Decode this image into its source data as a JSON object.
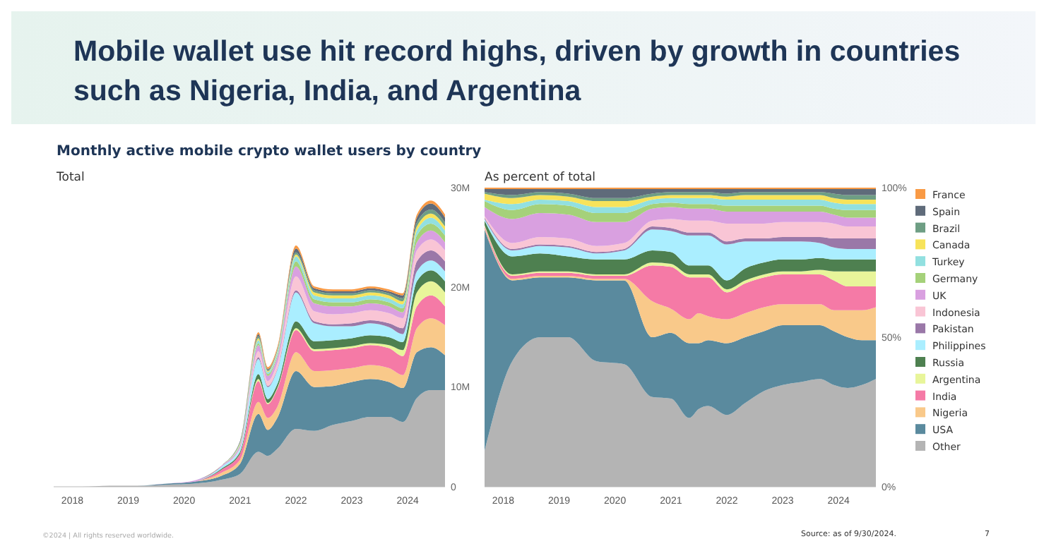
{
  "chart_data": [
    {
      "type": "area",
      "stacked": true,
      "title": "Mobile wallet use hit record highs, driven by growth in countries such as Nigeria, India, and Argentina",
      "subtitle": "Monthly active mobile crypto wallet users by country",
      "annotations": [
        "Total",
        "©2024 | All rights reserved worldwide."
      ],
      "x": [
        "2017-09",
        "2018-03",
        "2018-09",
        "2019-03",
        "2019-09",
        "2020-03",
        "2020-09",
        "2021-01",
        "2021-05",
        "2021-07",
        "2021-09",
        "2022-01",
        "2022-05",
        "2022-09",
        "2023-01",
        "2023-05",
        "2023-09",
        "2023-12",
        "2024-03",
        "2024-06",
        "2024-09"
      ],
      "xlim": [
        "2017-09",
        "2024-09"
      ],
      "xticks": [
        {
          "value": "2018",
          "label": "2018"
        },
        {
          "value": "2019",
          "label": "2019"
        },
        {
          "value": "2020",
          "label": "2020"
        },
        {
          "value": "2021",
          "label": "2021"
        },
        {
          "value": "2022",
          "label": "2022"
        },
        {
          "value": "2023",
          "label": "2023"
        },
        {
          "value": "2024",
          "label": "2024"
        }
      ],
      "ylim": [
        0,
        30
      ],
      "yticks": [
        0,
        {
          "value": 10,
          "label": "10M"
        },
        {
          "value": 20,
          "label": "20M"
        },
        {
          "value": 30,
          "label": "30M"
        }
      ],
      "series": [
        {
          "color": "#b4b4b4",
          "values": [
            0,
            0,
            0.1,
            0.1,
            0.2,
            0.3,
            0.7,
            1.3,
            3.5,
            3.1,
            3.8,
            5.8,
            5.6,
            6.2,
            6.6,
            7,
            7,
            6.5,
            8.9,
            9.7,
            9.7
          ]
        },
        {
          "color": "#5a8a9e",
          "values": [
            0,
            0,
            0,
            0,
            0.1,
            0.2,
            0.4,
            1,
            3.8,
            2.6,
            3.1,
            5.8,
            4.4,
            3.9,
            3.9,
            3.8,
            3.5,
            3.4,
            4.6,
            4.3,
            3.5
          ]
        },
        {
          "color": "#f9c98a",
          "values": [
            0,
            0,
            0,
            0,
            0,
            0,
            0.3,
            0.4,
            1.2,
            1.2,
            1.1,
            1.9,
            1.6,
            1.6,
            1.4,
            1.4,
            1.4,
            1.3,
            2.4,
            2.9,
            3
          ]
        },
        {
          "color": "#f57aa6",
          "values": [
            0,
            0,
            0,
            0,
            0,
            0,
            0.3,
            0.6,
            2.1,
            1.4,
            1.8,
            2.2,
            2,
            2,
            2,
            2,
            2,
            1.9,
            2.2,
            2.3,
            1.9
          ]
        },
        {
          "color": "#e8f59a",
          "values": [
            0,
            0,
            0,
            0,
            0,
            0,
            0,
            0,
            0.2,
            0.1,
            0.1,
            0.2,
            0.2,
            0.2,
            0.2,
            0.2,
            0.3,
            0.6,
            1.4,
            1.4,
            1.4
          ]
        },
        {
          "color": "#4e8050",
          "values": [
            0,
            0,
            0,
            0,
            0,
            0,
            0.1,
            0.2,
            0.5,
            0.4,
            0.4,
            0.7,
            0.8,
            0.8,
            0.8,
            0.8,
            0.8,
            0.8,
            1.1,
            1.1,
            1.1
          ]
        },
        {
          "color": "#aaeeff",
          "values": [
            0,
            0,
            0,
            0,
            0,
            0,
            0.2,
            0.3,
            1.5,
            1.2,
            1.4,
            2.9,
            1.8,
            1.4,
            1.2,
            1.2,
            1,
            0.8,
            1,
            1,
            1
          ]
        },
        {
          "color": "#9a78a8",
          "values": [
            0,
            0,
            0,
            0,
            0,
            0,
            0,
            0,
            0.2,
            0.1,
            0.1,
            0.2,
            0.2,
            0.2,
            0.3,
            0.3,
            0.4,
            0.6,
            1,
            1,
            1
          ]
        },
        {
          "color": "#f9c5d5",
          "values": [
            0,
            0,
            0,
            0,
            0,
            0,
            0,
            0.1,
            0.6,
            0.5,
            0.6,
            1.4,
            1,
            1,
            1,
            1,
            1,
            1,
            1.1,
            1.1,
            1.1
          ]
        },
        {
          "color": "#d9a0e0",
          "values": [
            0,
            0,
            0,
            0,
            0,
            0.1,
            0.1,
            0.2,
            0.6,
            0.5,
            0.6,
            1,
            0.8,
            0.8,
            0.7,
            0.7,
            0.7,
            0.6,
            0.8,
            0.9,
            0.8
          ]
        },
        {
          "color": "#a5d17a",
          "values": [
            0,
            0,
            0,
            0,
            0,
            0,
            0,
            0.1,
            0.2,
            0.2,
            0.2,
            0.5,
            0.4,
            0.4,
            0.4,
            0.4,
            0.4,
            0.4,
            0.7,
            0.7,
            0.7
          ]
        },
        {
          "color": "#92e0e0",
          "values": [
            0,
            0,
            0,
            0,
            0,
            0,
            0,
            0.1,
            0.3,
            0.2,
            0.3,
            0.5,
            0.4,
            0.4,
            0.4,
            0.4,
            0.4,
            0.4,
            0.5,
            0.6,
            0.5
          ]
        },
        {
          "color": "#f7e35a",
          "values": [
            0,
            0,
            0,
            0,
            0,
            0,
            0,
            0.1,
            0.2,
            0.1,
            0.1,
            0.2,
            0.3,
            0.3,
            0.3,
            0.3,
            0.3,
            0.3,
            0.4,
            0.4,
            0.4
          ]
        },
        {
          "color": "#6e9e84",
          "values": [
            0,
            0,
            0,
            0,
            0,
            0,
            0,
            0.1,
            0.2,
            0.1,
            0.1,
            0.2,
            0.2,
            0.2,
            0.2,
            0.2,
            0.2,
            0.3,
            0.4,
            0.4,
            0.4
          ]
        },
        {
          "color": "#5f6b7a",
          "values": [
            0,
            0,
            0,
            0,
            0,
            0,
            0,
            0.1,
            0.2,
            0.1,
            0.1,
            0.4,
            0.2,
            0.2,
            0.2,
            0.2,
            0.2,
            0.3,
            0.5,
            0.6,
            0.5
          ]
        },
        {
          "color": "#f99a45",
          "values": [
            0,
            0,
            0,
            0,
            0,
            0,
            0,
            0,
            0.2,
            0.2,
            0.2,
            0.3,
            0.2,
            0.2,
            0.2,
            0.2,
            0.2,
            0.2,
            0.3,
            0.3,
            0.3
          ]
        }
      ]
    },
    {
      "type": "area",
      "stacked": true,
      "title": "As percent of total",
      "annotations": [
        "Source: as of 9/30/2024.",
        "7"
      ],
      "legend": "right",
      "x": [
        "2017-09",
        "2018-03",
        "2018-09",
        "2019-03",
        "2019-09",
        "2020-03",
        "2020-09",
        "2021-01",
        "2021-05",
        "2021-07",
        "2021-09",
        "2022-01",
        "2022-05",
        "2022-09",
        "2023-01",
        "2023-05",
        "2023-09",
        "2023-12",
        "2024-03",
        "2024-06",
        "2024-09"
      ],
      "xlim": [
        "2017-09",
        "2024-09"
      ],
      "xticks": [
        {
          "value": "2018",
          "label": "2018"
        },
        {
          "value": "2019",
          "label": "2019"
        },
        {
          "value": "2020",
          "label": "2020"
        },
        {
          "value": "2021",
          "label": "2021"
        },
        {
          "value": "2022",
          "label": "2022"
        },
        {
          "value": "2023",
          "label": "2023"
        },
        {
          "value": "2024",
          "label": "2024"
        }
      ],
      "ylim": [
        0,
        100
      ],
      "yticks": [
        {
          "value": 0,
          "label": "0%"
        },
        {
          "value": 50,
          "label": "50%"
        },
        {
          "value": 100,
          "label": "100%"
        }
      ],
      "series": [
        {
          "name": "Other",
          "color": "#b4b4b4",
          "values": [
            12,
            42,
            50,
            50,
            42,
            41,
            30,
            29.5,
            23,
            26,
            27,
            24,
            28,
            32,
            34,
            35,
            36,
            34,
            33,
            34,
            36
          ]
        },
        {
          "name": "USA",
          "color": "#5a8a9e",
          "values": [
            74,
            27,
            20,
            20,
            27,
            28,
            20,
            22,
            25,
            22,
            22,
            24,
            22,
            20,
            20,
            19,
            18,
            18,
            17,
            15,
            13
          ]
        },
        {
          "name": "Nigeria",
          "color": "#f9c98a",
          "values": [
            0.5,
            0.5,
            0.5,
            0.5,
            0.5,
            0.5,
            12,
            8,
            8,
            10,
            8,
            8,
            8,
            8,
            7,
            7,
            7,
            7,
            9,
            10,
            11
          ]
        },
        {
          "name": "India",
          "color": "#f57aa6",
          "values": [
            0.5,
            1,
            1,
            1,
            1,
            1,
            12,
            14,
            14,
            12,
            13,
            9,
            10,
            10,
            10,
            10,
            10,
            10,
            8,
            8,
            7
          ]
        },
        {
          "name": "Argentina",
          "color": "#e8f59a",
          "values": [
            0.5,
            0.5,
            0.5,
            0.5,
            0.5,
            0.5,
            1,
            1,
            1,
            1,
            1,
            1,
            1,
            1,
            1,
            1,
            1.5,
            3,
            5,
            5,
            5
          ]
        },
        {
          "name": "Russia",
          "color": "#4e8050",
          "values": [
            1.5,
            6,
            6,
            5,
            5,
            5,
            4,
            4,
            3,
            3,
            3,
            3,
            4,
            4,
            4,
            4,
            4,
            4,
            4,
            4,
            4
          ]
        },
        {
          "name": "Philippines",
          "color": "#aaeeff",
          "values": [
            0.5,
            2,
            2.5,
            3,
            2,
            3,
            7,
            7,
            10,
            10,
            10,
            12,
            9,
            7,
            6,
            6,
            5,
            4,
            3.5,
            3.5,
            3.5
          ]
        },
        {
          "name": "Pakistan",
          "color": "#9a78a8",
          "values": [
            0.5,
            0.5,
            0.5,
            0.5,
            0.5,
            0.5,
            1,
            1,
            1,
            1,
            1,
            1,
            1,
            1,
            1.5,
            1.5,
            2,
            3,
            3.5,
            3.5,
            3.5
          ]
        },
        {
          "name": "Indonesia",
          "color": "#f9c5d5",
          "values": [
            0.5,
            2,
            2.5,
            2.5,
            2,
            2,
            2,
            3,
            4,
            4,
            4,
            6,
            5,
            5,
            5,
            5,
            5,
            5,
            4,
            4,
            4
          ]
        },
        {
          "name": "UK",
          "color": "#d9a0e0",
          "values": [
            3,
            8,
            8,
            8,
            8,
            7,
            4,
            4,
            4,
            4,
            4,
            4,
            4,
            4,
            3.5,
            3.5,
            3.5,
            3,
            3,
            3,
            3
          ]
        },
        {
          "name": "Germany",
          "color": "#a5d17a",
          "values": [
            2,
            3,
            3,
            3,
            3,
            3,
            1.5,
            1.5,
            1.5,
            1.5,
            1.5,
            2,
            2,
            2,
            2,
            2,
            2,
            2,
            2.5,
            2.5,
            2.5
          ]
        },
        {
          "name": "Turkey",
          "color": "#92e0e0",
          "values": [
            0.5,
            2,
            1.5,
            1.5,
            2,
            2,
            1.5,
            1.5,
            2,
            2,
            2,
            2,
            2,
            2,
            2,
            2,
            2,
            2,
            2,
            2,
            2
          ]
        },
        {
          "name": "Canada",
          "color": "#f7e35a",
          "values": [
            2,
            2,
            1.5,
            1.5,
            2,
            2,
            1,
            1,
            1,
            1,
            1,
            1,
            1.5,
            1.5,
            1.5,
            1.5,
            1.5,
            1.5,
            1.5,
            1.5,
            1.5
          ]
        },
        {
          "name": "Brazil",
          "color": "#6e9e84",
          "values": [
            0.5,
            1,
            1,
            1,
            1,
            1,
            1,
            1,
            1,
            1,
            1,
            1,
            1,
            1,
            1,
            1,
            1,
            1.5,
            1.5,
            1.5,
            1.5
          ]
        },
        {
          "name": "Spain",
          "color": "#5f6b7a",
          "values": [
            1,
            2,
            1,
            1.5,
            3,
            3,
            1.5,
            1,
            1,
            1,
            1,
            1.5,
            1,
            1,
            1,
            1,
            1,
            1.5,
            2,
            2,
            2
          ]
        },
        {
          "name": "France",
          "color": "#f99a45",
          "values": [
            0.5,
            0.5,
            0.5,
            0.5,
            0.5,
            0.5,
            0.5,
            0.5,
            0.5,
            0.5,
            0.5,
            0.5,
            0.5,
            0.5,
            0.5,
            0.5,
            0.5,
            0.5,
            0.5,
            0.5,
            0.5
          ]
        }
      ]
    }
  ]
}
